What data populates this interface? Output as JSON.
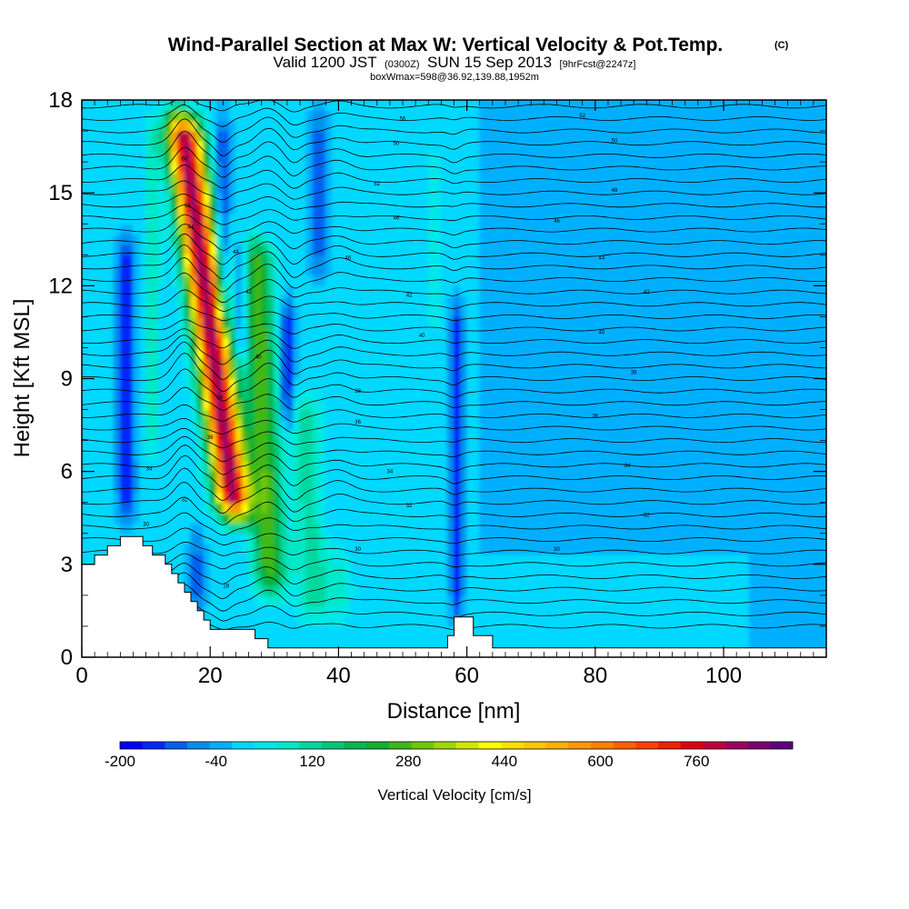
{
  "chart_data": {
    "type": "heatmap",
    "title": "Wind-Parallel Section at Max W: Vertical Velocity & Pot.Temp.",
    "title_mark": "(C)",
    "subtitle": {
      "prefix": "Valid 1200 JST",
      "utc": "(0300Z)",
      "date": "SUN 15 Sep 2013",
      "forecast": "[9hrFcst@2247z]"
    },
    "subtitle2": "boxWmax=598@36.92,139.88,1952m",
    "xlabel": "Distance [nm]",
    "ylabel": "Height [Kft MSL]",
    "xlim": [
      0,
      116
    ],
    "ylim": [
      0,
      18
    ],
    "xticks": [
      0,
      20,
      40,
      60,
      80,
      100
    ],
    "yticks": [
      0,
      3,
      6,
      9,
      12,
      15,
      18
    ],
    "colorbar": {
      "title": "Vertical Velocity [cm/s]",
      "vmin": -200,
      "vmax": 920,
      "step": 40,
      "tick_labels": [
        "-200",
        "-40",
        "120",
        "280",
        "440",
        "600",
        "760"
      ],
      "tick_values": [
        -200,
        -40,
        120,
        280,
        440,
        600,
        760
      ],
      "colors": [
        "#0000ff",
        "#0028ff",
        "#0060f0",
        "#0090ee",
        "#00b0ff",
        "#00d8ff",
        "#00e8e8",
        "#00e8c8",
        "#00d8a0",
        "#00c878",
        "#00b850",
        "#10b030",
        "#40b818",
        "#70c808",
        "#a0d800",
        "#d0e800",
        "#ffff00",
        "#ffe000",
        "#ffc800",
        "#ffb000",
        "#ff9800",
        "#ff8000",
        "#ff6000",
        "#ff4000",
        "#f02000",
        "#e00010",
        "#c00040",
        "#a00060",
        "#800070",
        "#600080"
      ]
    },
    "contour_labels": [
      {
        "x": 50,
        "y": 17.4,
        "text": "56"
      },
      {
        "x": 78,
        "y": 17.5,
        "text": "52"
      },
      {
        "x": 49,
        "y": 16.6,
        "text": "50"
      },
      {
        "x": 83,
        "y": 16.7,
        "text": "50"
      },
      {
        "x": 16,
        "y": 16.1,
        "text": "60"
      },
      {
        "x": 46,
        "y": 15.3,
        "text": "52"
      },
      {
        "x": 83,
        "y": 15.1,
        "text": "48"
      },
      {
        "x": 16.5,
        "y": 14.6,
        "text": "58"
      },
      {
        "x": 49,
        "y": 14.2,
        "text": "46"
      },
      {
        "x": 74,
        "y": 14.1,
        "text": "46"
      },
      {
        "x": 17,
        "y": 13.9,
        "text": "44"
      },
      {
        "x": 24,
        "y": 13.1,
        "text": "44"
      },
      {
        "x": 41.5,
        "y": 12.9,
        "text": "46"
      },
      {
        "x": 81,
        "y": 12.9,
        "text": "44"
      },
      {
        "x": 26,
        "y": 11.8,
        "text": "42"
      },
      {
        "x": 51,
        "y": 11.7,
        "text": "42"
      },
      {
        "x": 88,
        "y": 11.8,
        "text": "42"
      },
      {
        "x": 53,
        "y": 10.4,
        "text": "40"
      },
      {
        "x": 81,
        "y": 10.5,
        "text": "40"
      },
      {
        "x": 27.5,
        "y": 9.7,
        "text": "40"
      },
      {
        "x": 86,
        "y": 9.2,
        "text": "38"
      },
      {
        "x": 43,
        "y": 8.6,
        "text": "38"
      },
      {
        "x": 21.5,
        "y": 8.4,
        "text": "38"
      },
      {
        "x": 43,
        "y": 7.6,
        "text": "36"
      },
      {
        "x": 80,
        "y": 7.8,
        "text": "36"
      },
      {
        "x": 20,
        "y": 7.1,
        "text": "36"
      },
      {
        "x": 10.5,
        "y": 6.1,
        "text": "34"
      },
      {
        "x": 48,
        "y": 6.0,
        "text": "34"
      },
      {
        "x": 85,
        "y": 6.2,
        "text": "34"
      },
      {
        "x": 16,
        "y": 5.1,
        "text": "32"
      },
      {
        "x": 51,
        "y": 4.9,
        "text": "32"
      },
      {
        "x": 88,
        "y": 4.6,
        "text": "32"
      },
      {
        "x": 10,
        "y": 4.3,
        "text": "30"
      },
      {
        "x": 43,
        "y": 3.5,
        "text": "30"
      },
      {
        "x": 74,
        "y": 3.5,
        "text": "30"
      },
      {
        "x": 22.5,
        "y": 2.3,
        "text": "28"
      }
    ]
  }
}
